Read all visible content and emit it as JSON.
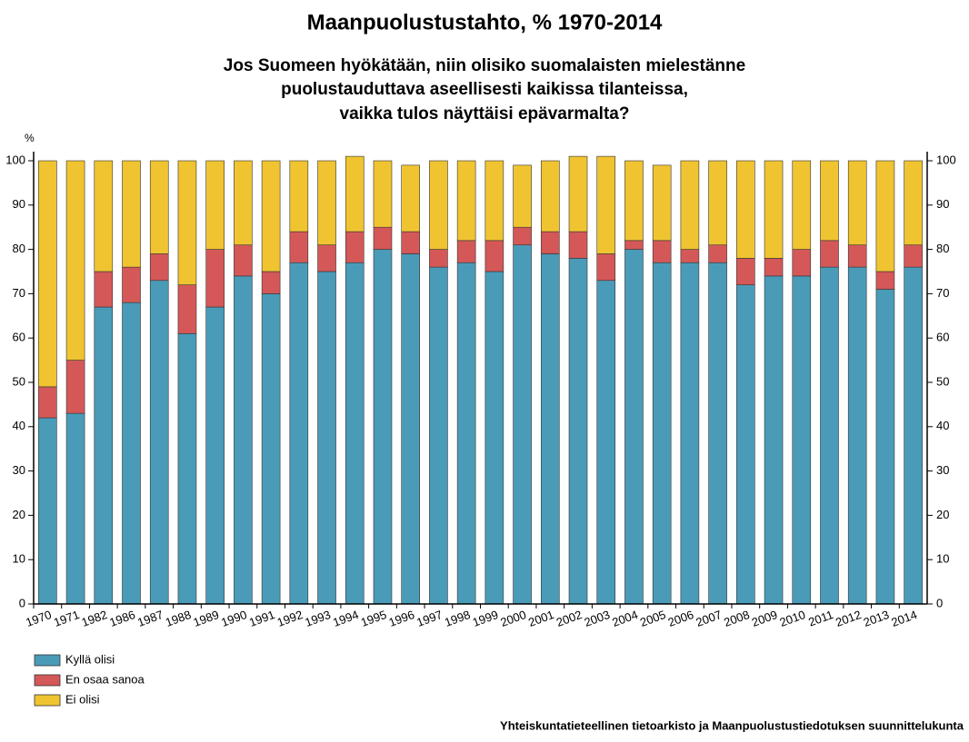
{
  "chart_data": {
    "type": "stacked_bar",
    "title": "Maanpuolustustahto, % 1970-2014",
    "subtitle": [
      "Jos Suomeen hyökätään, niin olisiko suomalaisten mielestänne",
      "puolustauduttava aseellisesti kaikissa tilanteissa,",
      "vaikka tulos näyttäisi epävarmalta?"
    ],
    "y_label": "%",
    "source": "Yhteiskuntatieteellinen tietoarkisto ja Maanpuolustustiedotuksen suunnittelukunta",
    "categories": [
      "1970",
      "1971",
      "1982",
      "1986",
      "1987",
      "1988",
      "1989",
      "1990",
      "1991",
      "1992",
      "1993",
      "1994",
      "1995",
      "1996",
      "1997",
      "1998",
      "1999",
      "2000",
      "2001",
      "2002",
      "2003",
      "2004",
      "2005",
      "2006",
      "2007",
      "2008",
      "2009",
      "2010",
      "2011",
      "2012",
      "2013",
      "2014"
    ],
    "series": [
      {
        "name": "Kyllä olisi",
        "color": "#4a9bb8",
        "values": [
          42,
          43,
          67,
          68,
          73,
          61,
          67,
          74,
          70,
          77,
          75,
          77,
          80,
          79,
          76,
          77,
          75,
          81,
          79,
          78,
          73,
          80,
          77,
          77,
          77,
          72,
          74,
          74,
          76,
          76,
          71,
          76
        ]
      },
      {
        "name": "En osaa sanoa",
        "color": "#d45858",
        "values": [
          7,
          12,
          8,
          8,
          6,
          11,
          13,
          7,
          5,
          7,
          6,
          7,
          5,
          5,
          4,
          5,
          7,
          4,
          5,
          6,
          6,
          2,
          5,
          3,
          4,
          6,
          4,
          6,
          6,
          5,
          4,
          5
        ]
      },
      {
        "name": "Ei olisi",
        "color": "#f0c431",
        "values": [
          51,
          45,
          25,
          24,
          21,
          28,
          20,
          19,
          25,
          16,
          19,
          17,
          15,
          15,
          20,
          18,
          18,
          14,
          16,
          17,
          22,
          18,
          17,
          20,
          19,
          22,
          22,
          20,
          18,
          19,
          25,
          19
        ]
      }
    ],
    "ylim": [
      0,
      100
    ],
    "yticks": [
      0,
      10,
      20,
      30,
      40,
      50,
      60,
      70,
      80,
      90,
      100
    ],
    "y2lim": [
      0,
      100
    ],
    "y2ticks": [
      0,
      10,
      20,
      30,
      40,
      50,
      60,
      70,
      80,
      90,
      100
    ]
  }
}
